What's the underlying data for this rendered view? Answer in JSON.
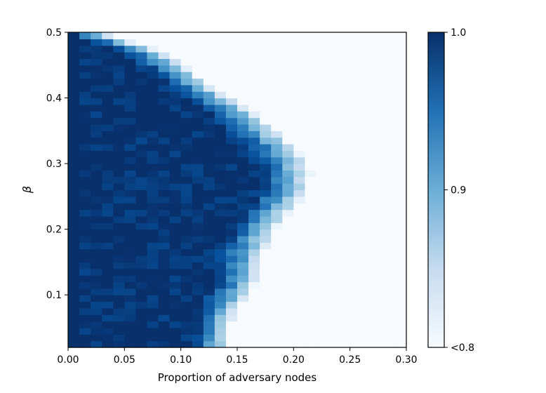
{
  "chart_data": {
    "type": "heatmap",
    "title": "",
    "xlabel": "Proportion of adversary nodes",
    "ylabel": "β",
    "xlim": [
      0.0,
      0.3
    ],
    "ylim": [
      0.02,
      0.5
    ],
    "x_ticks": [
      "0.00",
      "0.05",
      "0.10",
      "0.15",
      "0.20",
      "0.25",
      "0.30"
    ],
    "y_ticks": [
      "0.1",
      "0.2",
      "0.3",
      "0.4",
      "0.5"
    ],
    "grid": false,
    "cell_width": 0.01,
    "cell_height": 0.01,
    "colorbar": {
      "min": 0.8,
      "max": 1.0,
      "tick_labels": [
        "1.0",
        "0.9",
        "<0.8"
      ],
      "low_color": "#f7fbff",
      "high_color": "#08306b"
    },
    "boundary_description": "value ~1.0 in dark region; drops toward <0.8 beyond the boundary, widest near β=0.28 (x≈0.215)",
    "boundary": {
      "beta": [
        0.02,
        0.05,
        0.08,
        0.11,
        0.14,
        0.17,
        0.2,
        0.23,
        0.26,
        0.29,
        0.32,
        0.35,
        0.38,
        0.41,
        0.44,
        0.47,
        0.5
      ],
      "x_max": [
        0.14,
        0.145,
        0.15,
        0.165,
        0.17,
        0.175,
        0.185,
        0.2,
        0.215,
        0.215,
        0.205,
        0.185,
        0.165,
        0.135,
        0.11,
        0.085,
        0.03
      ]
    }
  }
}
